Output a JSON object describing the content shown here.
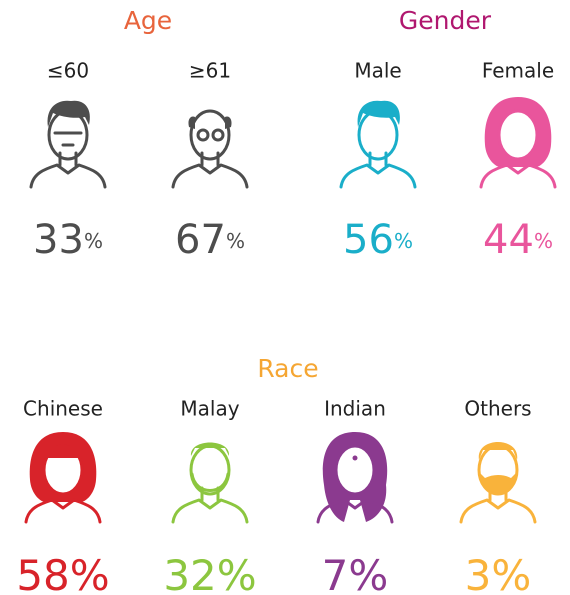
{
  "sections": [
    {
      "title": "Age",
      "color": "#e8643c",
      "items": [
        {
          "label": "≤60",
          "value": 33,
          "unit": "%",
          "color": "#4d4d4d",
          "icon": "young"
        },
        {
          "label": "≥61",
          "value": 67,
          "unit": "%",
          "color": "#4d4d4d",
          "icon": "old"
        }
      ]
    },
    {
      "title": "Gender",
      "color": "#b0176f",
      "items": [
        {
          "label": "Male",
          "value": 56,
          "unit": "%",
          "color": "#1aaec9",
          "icon": "male"
        },
        {
          "label": "Female",
          "value": 44,
          "unit": "%",
          "color": "#e9559c",
          "icon": "female"
        }
      ]
    },
    {
      "title": "Race",
      "color": "#f5a633",
      "items": [
        {
          "label": "Chinese",
          "value": 58,
          "unit": "%",
          "color": "#d8232a",
          "icon": "chinese"
        },
        {
          "label": "Malay",
          "value": 32,
          "unit": "%",
          "color": "#8cc63f",
          "icon": "malay"
        },
        {
          "label": "Indian",
          "value": 7,
          "unit": "%",
          "color": "#8b3a8f",
          "icon": "indian"
        },
        {
          "label": "Others",
          "value": 3,
          "unit": "%",
          "color": "#f9b33b",
          "icon": "others"
        }
      ]
    }
  ]
}
